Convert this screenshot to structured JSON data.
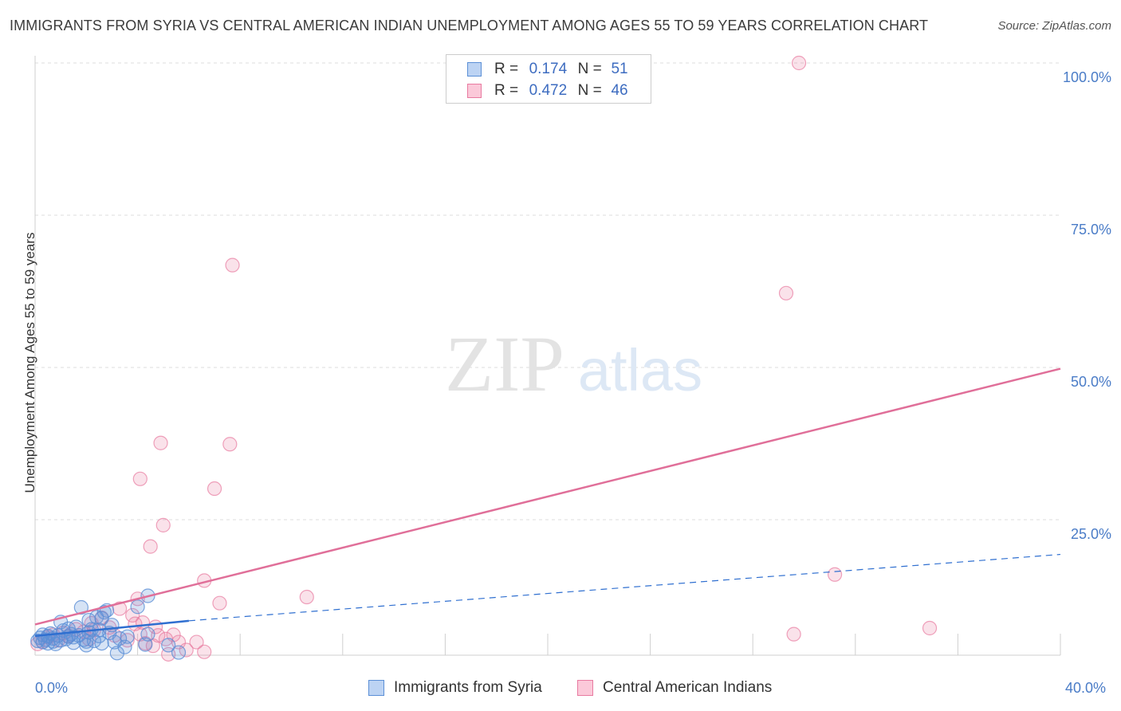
{
  "title": "IMMIGRANTS FROM SYRIA VS CENTRAL AMERICAN INDIAN UNEMPLOYMENT AMONG AGES 55 TO 59 YEARS CORRELATION CHART",
  "source": "Source: ZipAtlas.com",
  "watermark": {
    "zip": "ZIP",
    "atlas": "atlas"
  },
  "legend": {
    "r_label": "R =",
    "n_label": "N =",
    "series": [
      {
        "r": "0.174",
        "n": "51"
      },
      {
        "r": "0.472",
        "n": "46"
      }
    ]
  },
  "chart_data": {
    "type": "scatter",
    "title": "IMMIGRANTS FROM SYRIA VS CENTRAL AMERICAN INDIAN UNEMPLOYMENT AMONG AGES 55 TO 59 YEARS CORRELATION CHART",
    "xlabel": "",
    "ylabel": "Unemployment Among Ages 55 to 59 years",
    "xlim": [
      0,
      40
    ],
    "ylim": [
      0,
      102
    ],
    "x_tick_labels": [
      "0.0%",
      "40.0%"
    ],
    "y_tick_labels": [
      "100.0%",
      "75.0%",
      "50.0%",
      "25.0%"
    ],
    "y_tick_values": [
      100,
      75,
      50,
      25
    ],
    "grid": true,
    "legend_position": "top-center",
    "colors": {
      "syria": "#5b8fd6",
      "central": "#e87aa0",
      "syria_line": "#2f6fd0",
      "central_line": "#e06f99"
    },
    "series": [
      {
        "name": "Immigrants from Syria",
        "r": 0.174,
        "n": 51,
        "trend": {
          "x0": 0,
          "y0": 5.9,
          "x1": 6,
          "y1": 8.4,
          "dash_to": 40,
          "dash_y": 19.3
        },
        "points": [
          [
            0.1,
            5.1
          ],
          [
            0.2,
            5.6
          ],
          [
            0.3,
            4.9
          ],
          [
            0.3,
            6.1
          ],
          [
            0.4,
            5.3
          ],
          [
            0.5,
            4.7
          ],
          [
            0.5,
            5.9
          ],
          [
            0.6,
            6.3
          ],
          [
            0.7,
            5.0
          ],
          [
            0.7,
            5.5
          ],
          [
            0.8,
            4.6
          ],
          [
            0.9,
            6.0
          ],
          [
            1.0,
            5.2
          ],
          [
            1.0,
            8.2
          ],
          [
            1.1,
            6.8
          ],
          [
            1.2,
            5.4
          ],
          [
            1.3,
            7.1
          ],
          [
            1.3,
            5.8
          ],
          [
            1.4,
            6.2
          ],
          [
            1.5,
            4.8
          ],
          [
            1.5,
            5.7
          ],
          [
            1.6,
            7.4
          ],
          [
            1.7,
            6.0
          ],
          [
            1.8,
            10.6
          ],
          [
            1.9,
            5.3
          ],
          [
            2.0,
            4.4
          ],
          [
            2.1,
            8.5
          ],
          [
            2.1,
            6.5
          ],
          [
            2.2,
            7.0
          ],
          [
            2.3,
            5.1
          ],
          [
            2.4,
            9.0
          ],
          [
            2.5,
            5.9
          ],
          [
            2.6,
            4.7
          ],
          [
            2.7,
            9.8
          ],
          [
            2.8,
            10.1
          ],
          [
            2.9,
            6.4
          ],
          [
            3.0,
            7.7
          ],
          [
            3.1,
            4.9
          ],
          [
            3.2,
            3.1
          ],
          [
            3.3,
            5.5
          ],
          [
            2.0,
            5.0
          ],
          [
            2.6,
            8.8
          ],
          [
            3.6,
            5.8
          ],
          [
            4.4,
            6.2
          ],
          [
            4.3,
            4.5
          ],
          [
            2.5,
            6.9
          ],
          [
            4.0,
            10.7
          ],
          [
            3.5,
            4.1
          ],
          [
            5.2,
            4.4
          ],
          [
            5.6,
            3.2
          ],
          [
            4.4,
            12.5
          ]
        ]
      },
      {
        "name": "Central American Indians",
        "r": 0.472,
        "n": 46,
        "trend": {
          "x0": 0,
          "y0": 7.8,
          "x1": 40,
          "y1": 49.8
        },
        "points": [
          [
            0.1,
            4.6
          ],
          [
            0.3,
            5.0
          ],
          [
            0.5,
            5.7
          ],
          [
            0.7,
            6.1
          ],
          [
            0.9,
            5.2
          ],
          [
            1.1,
            6.4
          ],
          [
            1.3,
            5.9
          ],
          [
            1.6,
            7.0
          ],
          [
            1.9,
            6.6
          ],
          [
            2.1,
            5.4
          ],
          [
            2.3,
            6.9
          ],
          [
            2.6,
            8.9
          ],
          [
            2.9,
            7.3
          ],
          [
            3.1,
            6.0
          ],
          [
            3.3,
            10.4
          ],
          [
            3.6,
            5.2
          ],
          [
            3.9,
            7.9
          ],
          [
            4.1,
            6.2
          ],
          [
            4.3,
            4.7
          ],
          [
            4.6,
            4.3
          ],
          [
            4.8,
            6.0
          ],
          [
            5.1,
            5.4
          ],
          [
            5.4,
            6.1
          ],
          [
            5.6,
            4.9
          ],
          [
            5.9,
            3.6
          ],
          [
            6.3,
            4.9
          ],
          [
            6.6,
            3.3
          ],
          [
            4.2,
            8.1
          ],
          [
            4.7,
            7.4
          ],
          [
            3.8,
            9.3
          ],
          [
            2.2,
            8.0
          ],
          [
            5.2,
            2.9
          ],
          [
            4.0,
            12.0
          ],
          [
            6.6,
            15.0
          ],
          [
            7.2,
            11.3
          ],
          [
            4.5,
            20.6
          ],
          [
            5.0,
            24.1
          ],
          [
            4.1,
            31.7
          ],
          [
            7.0,
            30.1
          ],
          [
            4.9,
            37.6
          ],
          [
            7.6,
            37.4
          ],
          [
            7.7,
            66.8
          ],
          [
            10.6,
            12.3
          ],
          [
            29.3,
            62.2
          ],
          [
            31.2,
            16.0
          ],
          [
            29.6,
            6.2
          ]
        ],
        "extra_points": [
          [
            29.8,
            100.0
          ],
          [
            34.9,
            7.2
          ]
        ]
      }
    ]
  },
  "bottom_legend": [
    {
      "label": "Immigrants from Syria"
    },
    {
      "label": "Central American Indians"
    }
  ]
}
